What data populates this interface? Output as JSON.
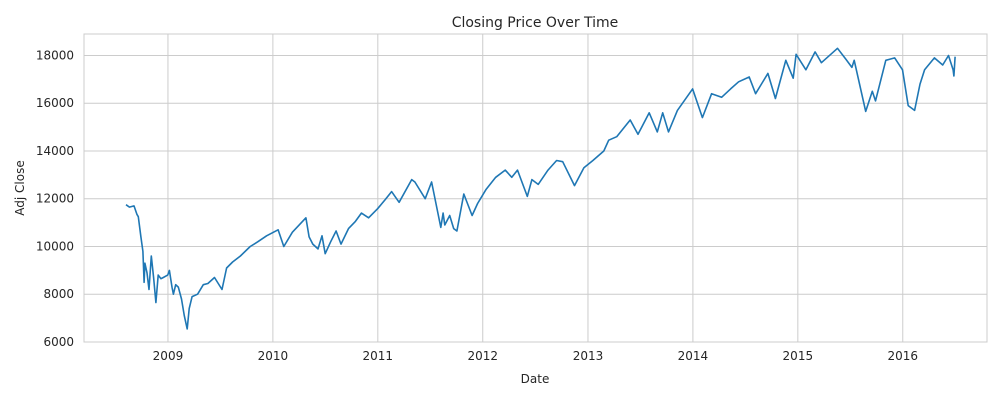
{
  "chart_data": {
    "type": "line",
    "title": "Closing Price Over Time",
    "xlabel": "Date",
    "ylabel": "Adj Close",
    "x_range": [
      "2008-03-15",
      "2016-10-20"
    ],
    "ylim": [
      6000,
      18900
    ],
    "x_ticks": [
      "2009-01-01",
      "2010-01-01",
      "2011-01-01",
      "2012-01-01",
      "2013-01-01",
      "2014-01-01",
      "2015-01-01",
      "2016-01-01"
    ],
    "x_tick_labels": [
      "2009",
      "2010",
      "2011",
      "2012",
      "2013",
      "2014",
      "2015",
      "2016"
    ],
    "y_ticks": [
      6000,
      8000,
      10000,
      12000,
      14000,
      16000,
      18000
    ],
    "y_tick_labels": [
      "6000",
      "8000",
      "10000",
      "12000",
      "14000",
      "16000",
      "18000"
    ],
    "grid": true,
    "line_color": "#1f77b4",
    "series": [
      {
        "x": [
          "2008-08-08",
          "2008-08-20",
          "2008-09-05",
          "2008-09-15",
          "2008-09-20",
          "2008-09-29",
          "2008-10-06",
          "2008-10-10",
          "2008-10-13",
          "2008-10-20",
          "2008-10-27",
          "2008-11-04",
          "2008-11-12",
          "2008-11-20",
          "2008-11-28",
          "2008-12-08",
          "2008-12-16",
          "2008-12-31",
          "2009-01-06",
          "2009-01-15",
          "2009-01-20",
          "2009-01-28",
          "2009-02-06",
          "2009-02-17",
          "2009-02-27",
          "2009-03-09",
          "2009-03-16",
          "2009-03-26",
          "2009-04-14",
          "2009-05-04",
          "2009-05-20",
          "2009-06-12",
          "2009-07-08",
          "2009-07-24",
          "2009-08-14",
          "2009-09-10",
          "2009-10-14",
          "2009-11-10",
          "2009-12-10",
          "2010-01-19",
          "2010-02-08",
          "2010-03-10",
          "2010-04-26",
          "2010-05-07",
          "2010-05-20",
          "2010-06-07",
          "2010-06-21",
          "2010-07-02",
          "2010-07-21",
          "2010-08-09",
          "2010-08-26",
          "2010-09-21",
          "2010-10-15",
          "2010-11-05",
          "2010-11-30",
          "2010-12-31",
          "2011-01-26",
          "2011-02-18",
          "2011-03-16",
          "2011-04-29",
          "2011-05-10",
          "2011-06-15",
          "2011-07-07",
          "2011-08-08",
          "2011-08-16",
          "2011-08-22",
          "2011-09-08",
          "2011-09-22",
          "2011-10-03",
          "2011-10-27",
          "2011-11-25",
          "2011-12-14",
          "2012-01-13",
          "2012-02-15",
          "2012-03-19",
          "2012-04-11",
          "2012-05-01",
          "2012-06-04",
          "2012-06-20",
          "2012-07-12",
          "2012-08-15",
          "2012-09-14",
          "2012-10-05",
          "2012-11-15",
          "2012-12-18",
          "2013-01-18",
          "2013-02-25",
          "2013-03-14",
          "2013-04-11",
          "2013-05-28",
          "2013-06-24",
          "2013-08-02",
          "2013-08-30",
          "2013-09-18",
          "2013-10-08",
          "2013-11-08",
          "2013-12-31",
          "2014-02-03",
          "2014-03-07",
          "2014-04-11",
          "2014-05-12",
          "2014-06-09",
          "2014-07-16",
          "2014-08-07",
          "2014-09-19",
          "2014-10-15",
          "2014-11-20",
          "2014-12-16",
          "2014-12-26",
          "2015-01-29",
          "2015-03-02",
          "2015-03-24",
          "2015-05-19",
          "2015-06-17",
          "2015-07-08",
          "2015-07-16",
          "2015-08-25",
          "2015-09-17",
          "2015-09-28",
          "2015-11-03",
          "2015-12-04",
          "2015-12-31",
          "2016-01-20",
          "2016-02-11",
          "2016-03-01",
          "2016-03-17",
          "2016-04-20",
          "2016-05-19",
          "2016-06-08",
          "2016-06-24",
          "2016-06-27",
          "2016-07-01"
        ],
        "y": [
          11750,
          11650,
          11700,
          11350,
          11250,
          10400,
          9800,
          8500,
          9300,
          8900,
          8200,
          9600,
          8700,
          7650,
          8800,
          8650,
          8700,
          8800,
          9000,
          8300,
          8000,
          8400,
          8300,
          7800,
          7100,
          6550,
          7400,
          7900,
          8000,
          8400,
          8450,
          8700,
          8200,
          9100,
          9350,
          9600,
          10000,
          10200,
          10450,
          10700,
          10000,
          10600,
          11200,
          10400,
          10100,
          9900,
          10450,
          9700,
          10200,
          10650,
          10100,
          10750,
          11050,
          11400,
          11200,
          11580,
          11950,
          12300,
          11850,
          12800,
          12700,
          12000,
          12700,
          10800,
          11400,
          10900,
          11300,
          10750,
          10650,
          12200,
          11300,
          11800,
          12400,
          12900,
          13200,
          12900,
          13200,
          12100,
          12800,
          12600,
          13200,
          13600,
          13550,
          12550,
          13300,
          13600,
          14000,
          14450,
          14600,
          15300,
          14700,
          15600,
          14800,
          15600,
          14800,
          15700,
          16600,
          15400,
          16400,
          16250,
          16600,
          16900,
          17100,
          16400,
          17250,
          16200,
          17800,
          17050,
          18050,
          17400,
          18150,
          17700,
          18300,
          17850,
          17500,
          17800,
          15660,
          16500,
          16100,
          17800,
          17900,
          17400,
          15900,
          15700,
          16800,
          17400,
          17900,
          17600,
          18000,
          17400,
          17140,
          17950
        ]
      }
    ]
  }
}
